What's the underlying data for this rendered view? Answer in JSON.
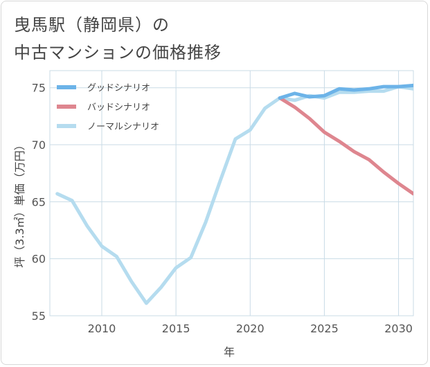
{
  "title_lines": [
    "曳馬駅（静岡県）の",
    "中古マンションの価格推移"
  ],
  "chart_data": {
    "type": "line",
    "xlabel": "年",
    "ylabel": "坪（3.3㎡）単価（万円）",
    "xlim": [
      2006.5,
      2031
    ],
    "ylim": [
      55,
      76.5
    ],
    "xticks": [
      2010,
      2015,
      2020,
      2025,
      2030
    ],
    "yticks": [
      55,
      60,
      65,
      70,
      75
    ],
    "grid": true,
    "legend_position": "top-left",
    "series": [
      {
        "name": "グッドシナリオ",
        "color": "#6cb3e8",
        "x": [
          2022,
          2023,
          2024,
          2025,
          2026,
          2027,
          2028,
          2029,
          2030,
          2031
        ],
        "values": [
          74.1,
          74.5,
          74.2,
          74.3,
          74.9,
          74.8,
          74.9,
          75.1,
          75.1,
          75.2
        ]
      },
      {
        "name": "バッドシナリオ",
        "color": "#de868f",
        "x": [
          2022,
          2023,
          2024,
          2025,
          2026,
          2027,
          2028,
          2029,
          2030,
          2031
        ],
        "values": [
          74.1,
          73.3,
          72.3,
          71.1,
          70.3,
          69.4,
          68.7,
          67.6,
          66.6,
          65.7
        ]
      },
      {
        "name": "ノーマルシナリオ",
        "color": "#b5dcef",
        "x": [
          2007,
          2008,
          2009,
          2010,
          2011,
          2012,
          2013,
          2014,
          2015,
          2016,
          2017,
          2018,
          2019,
          2020,
          2021,
          2022,
          2023,
          2024,
          2025,
          2026,
          2027,
          2028,
          2029,
          2030,
          2031
        ],
        "values": [
          65.7,
          65.1,
          62.9,
          61.1,
          60.2,
          58.0,
          56.1,
          57.5,
          59.2,
          60.1,
          63.2,
          66.9,
          70.5,
          71.3,
          73.2,
          74.1,
          73.9,
          74.3,
          74.1,
          74.6,
          74.6,
          74.7,
          74.7,
          75.1,
          74.9
        ]
      }
    ]
  }
}
